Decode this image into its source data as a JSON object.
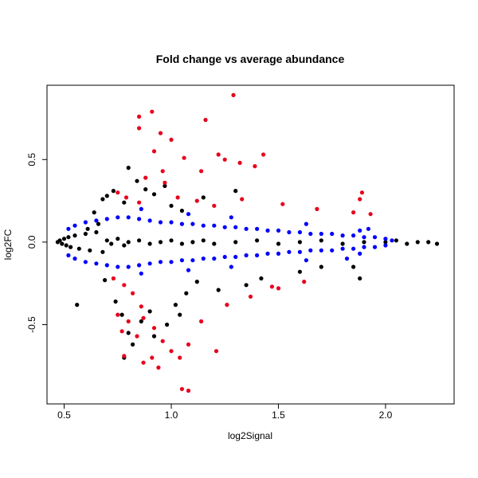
{
  "chart_data": {
    "type": "scatter",
    "title": "Fold change vs average abundance",
    "xlabel": "log2Signal",
    "ylabel": "log2FC",
    "xlim": [
      0.42,
      2.32
    ],
    "ylim": [
      -0.98,
      0.95
    ],
    "xticks": [
      0.5,
      1.0,
      1.5,
      2.0
    ],
    "xtick_labels": [
      "0.5",
      "1.0",
      "1.5",
      "2.0"
    ],
    "yticks": [
      -0.5,
      0.0,
      0.5
    ],
    "ytick_labels": [
      "-0.5",
      "0.0",
      "0.5"
    ],
    "grid": false,
    "legend": "none",
    "colors": {
      "black": "#000000",
      "blue": "#0000ff",
      "red": "#e8001c"
    },
    "series": [
      {
        "color": "black",
        "points": [
          [
            0.47,
            0.0
          ],
          [
            0.48,
            0.01
          ],
          [
            0.49,
            -0.01
          ],
          [
            0.5,
            0.02
          ],
          [
            0.51,
            -0.02
          ],
          [
            0.52,
            0.03
          ],
          [
            0.53,
            -0.03
          ],
          [
            0.55,
            0.04
          ],
          [
            0.57,
            -0.04
          ],
          [
            0.6,
            0.05
          ],
          [
            0.62,
            -0.05
          ],
          [
            0.65,
            0.06
          ],
          [
            0.68,
            -0.06
          ],
          [
            0.7,
            0.01
          ],
          [
            0.72,
            -0.01
          ],
          [
            0.75,
            0.02
          ],
          [
            0.78,
            -0.02
          ],
          [
            0.8,
            0.0
          ],
          [
            0.85,
            0.01
          ],
          [
            0.9,
            -0.01
          ],
          [
            0.95,
            0.0
          ],
          [
            1.0,
            0.01
          ],
          [
            1.05,
            -0.01
          ],
          [
            1.1,
            0.0
          ],
          [
            1.15,
            0.01
          ],
          [
            1.2,
            -0.01
          ],
          [
            1.3,
            0.0
          ],
          [
            1.4,
            0.01
          ],
          [
            1.5,
            -0.01
          ],
          [
            1.6,
            0.0
          ],
          [
            1.7,
            0.01
          ],
          [
            1.8,
            -0.01
          ],
          [
            1.9,
            0.0
          ],
          [
            2.0,
            0.0
          ],
          [
            2.05,
            0.01
          ],
          [
            2.1,
            -0.01
          ],
          [
            2.15,
            0.0
          ],
          [
            2.2,
            0.0
          ],
          [
            2.24,
            -0.01
          ],
          [
            0.56,
            -0.38
          ],
          [
            0.61,
            0.08
          ],
          [
            0.64,
            0.18
          ],
          [
            0.66,
            0.11
          ],
          [
            0.68,
            0.26
          ],
          [
            0.7,
            0.28
          ],
          [
            0.73,
            0.31
          ],
          [
            0.78,
            0.24
          ],
          [
            0.8,
            0.45
          ],
          [
            0.84,
            0.37
          ],
          [
            0.88,
            0.32
          ],
          [
            0.92,
            0.29
          ],
          [
            0.97,
            0.34
          ],
          [
            1.0,
            0.22
          ],
          [
            1.05,
            0.19
          ],
          [
            1.15,
            0.27
          ],
          [
            1.3,
            0.31
          ],
          [
            0.69,
            -0.23
          ],
          [
            0.74,
            -0.36
          ],
          [
            0.77,
            -0.44
          ],
          [
            0.8,
            -0.55
          ],
          [
            0.82,
            -0.62
          ],
          [
            0.86,
            -0.48
          ],
          [
            0.9,
            -0.42
          ],
          [
            0.92,
            -0.57
          ],
          [
            0.98,
            -0.5
          ],
          [
            1.02,
            -0.38
          ],
          [
            1.07,
            -0.31
          ],
          [
            1.12,
            -0.24
          ],
          [
            1.22,
            -0.29
          ],
          [
            1.35,
            -0.26
          ],
          [
            1.42,
            -0.22
          ],
          [
            1.6,
            -0.18
          ],
          [
            1.7,
            -0.15
          ],
          [
            1.85,
            -0.15
          ],
          [
            1.88,
            -0.22
          ],
          [
            0.78,
            -0.7
          ],
          [
            1.04,
            -0.44
          ]
        ]
      },
      {
        "color": "blue",
        "points": [
          [
            0.52,
            0.08
          ],
          [
            0.55,
            0.1
          ],
          [
            0.6,
            0.12
          ],
          [
            0.65,
            0.13
          ],
          [
            0.7,
            0.14
          ],
          [
            0.75,
            0.15
          ],
          [
            0.8,
            0.15
          ],
          [
            0.85,
            0.14
          ],
          [
            0.9,
            0.13
          ],
          [
            0.95,
            0.12
          ],
          [
            1.0,
            0.12
          ],
          [
            1.05,
            0.11
          ],
          [
            1.1,
            0.11
          ],
          [
            1.15,
            0.1
          ],
          [
            1.2,
            0.1
          ],
          [
            1.25,
            0.09
          ],
          [
            1.3,
            0.09
          ],
          [
            1.35,
            0.08
          ],
          [
            1.4,
            0.08
          ],
          [
            1.45,
            0.07
          ],
          [
            1.5,
            0.07
          ],
          [
            1.55,
            0.06
          ],
          [
            1.6,
            0.06
          ],
          [
            1.65,
            0.05
          ],
          [
            1.7,
            0.05
          ],
          [
            1.75,
            0.05
          ],
          [
            1.8,
            0.04
          ],
          [
            1.85,
            0.04
          ],
          [
            1.9,
            0.03
          ],
          [
            1.95,
            0.03
          ],
          [
            2.0,
            0.02
          ],
          [
            0.52,
            -0.08
          ],
          [
            0.55,
            -0.1
          ],
          [
            0.6,
            -0.12
          ],
          [
            0.65,
            -0.13
          ],
          [
            0.7,
            -0.14
          ],
          [
            0.75,
            -0.15
          ],
          [
            0.8,
            -0.15
          ],
          [
            0.85,
            -0.14
          ],
          [
            0.9,
            -0.13
          ],
          [
            0.95,
            -0.12
          ],
          [
            1.0,
            -0.12
          ],
          [
            1.05,
            -0.11
          ],
          [
            1.1,
            -0.11
          ],
          [
            1.15,
            -0.1
          ],
          [
            1.2,
            -0.1
          ],
          [
            1.25,
            -0.09
          ],
          [
            1.3,
            -0.09
          ],
          [
            1.35,
            -0.08
          ],
          [
            1.4,
            -0.08
          ],
          [
            1.45,
            -0.07
          ],
          [
            1.5,
            -0.07
          ],
          [
            1.55,
            -0.06
          ],
          [
            1.6,
            -0.06
          ],
          [
            1.65,
            -0.05
          ],
          [
            1.7,
            -0.05
          ],
          [
            1.75,
            -0.05
          ],
          [
            1.8,
            -0.04
          ],
          [
            1.85,
            -0.04
          ],
          [
            1.9,
            -0.03
          ],
          [
            1.95,
            -0.03
          ],
          [
            2.0,
            -0.02
          ],
          [
            0.86,
            0.2
          ],
          [
            1.08,
            0.17
          ],
          [
            1.28,
            0.15
          ],
          [
            1.63,
            0.11
          ],
          [
            1.88,
            0.07
          ],
          [
            0.86,
            -0.19
          ],
          [
            1.08,
            -0.17
          ],
          [
            1.28,
            -0.15
          ],
          [
            1.63,
            -0.11
          ],
          [
            1.88,
            -0.07
          ],
          [
            1.92,
            0.08
          ],
          [
            1.82,
            -0.1
          ],
          [
            2.03,
            0.01
          ]
        ]
      },
      {
        "color": "red",
        "points": [
          [
            0.85,
            0.76
          ],
          [
            0.91,
            0.79
          ],
          [
            0.85,
            0.69
          ],
          [
            0.95,
            0.66
          ],
          [
            1.0,
            0.62
          ],
          [
            1.16,
            0.74
          ],
          [
            1.29,
            0.89
          ],
          [
            0.92,
            0.55
          ],
          [
            1.06,
            0.51
          ],
          [
            1.22,
            0.53
          ],
          [
            1.25,
            0.5
          ],
          [
            1.43,
            0.53
          ],
          [
            1.39,
            0.46
          ],
          [
            1.32,
            0.48
          ],
          [
            1.14,
            0.43
          ],
          [
            0.96,
            0.43
          ],
          [
            0.88,
            0.39
          ],
          [
            0.97,
            0.36
          ],
          [
            0.75,
            0.3
          ],
          [
            0.79,
            0.27
          ],
          [
            0.85,
            0.24
          ],
          [
            1.03,
            0.27
          ],
          [
            1.12,
            0.25
          ],
          [
            1.2,
            0.22
          ],
          [
            1.33,
            0.26
          ],
          [
            1.52,
            0.23
          ],
          [
            1.68,
            0.2
          ],
          [
            1.85,
            0.18
          ],
          [
            1.89,
            0.3
          ],
          [
            1.88,
            0.26
          ],
          [
            1.93,
            0.17
          ],
          [
            0.73,
            -0.22
          ],
          [
            0.78,
            -0.26
          ],
          [
            0.82,
            -0.31
          ],
          [
            0.86,
            -0.39
          ],
          [
            0.75,
            -0.44
          ],
          [
            0.8,
            -0.48
          ],
          [
            0.84,
            -0.57
          ],
          [
            0.92,
            -0.52
          ],
          [
            0.96,
            -0.6
          ],
          [
            1.0,
            -0.66
          ],
          [
            0.91,
            -0.7
          ],
          [
            0.87,
            -0.73
          ],
          [
            0.78,
            -0.69
          ],
          [
            0.94,
            -0.76
          ],
          [
            1.04,
            -0.7
          ],
          [
            1.08,
            -0.62
          ],
          [
            1.21,
            -0.66
          ],
          [
            1.05,
            -0.89
          ],
          [
            1.08,
            -0.9
          ],
          [
            1.14,
            -0.48
          ],
          [
            1.26,
            -0.38
          ],
          [
            1.37,
            -0.33
          ],
          [
            1.5,
            -0.28
          ],
          [
            1.62,
            -0.24
          ],
          [
            1.47,
            -0.27
          ],
          [
            0.77,
            -0.54
          ],
          [
            0.87,
            -0.46
          ]
        ]
      }
    ]
  }
}
